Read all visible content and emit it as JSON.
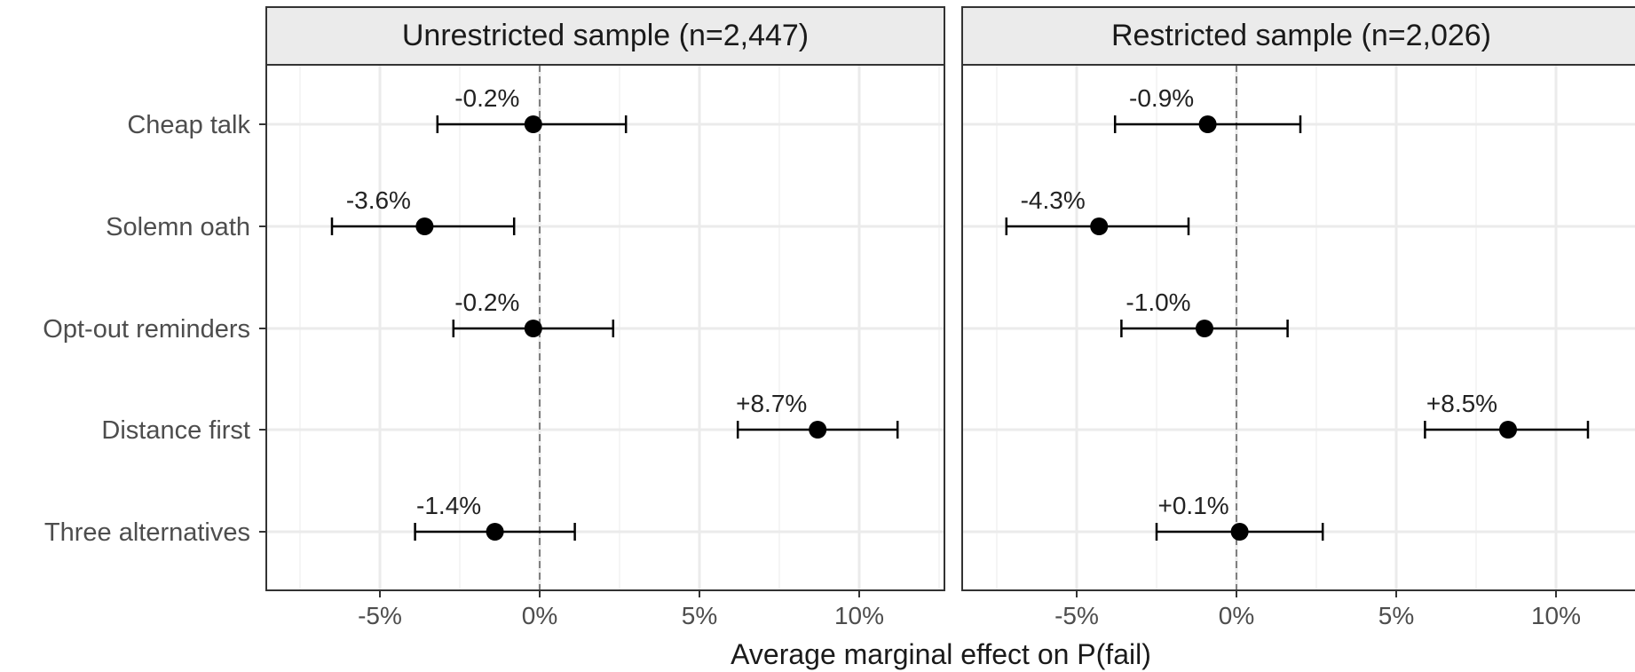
{
  "chart_data": [
    {
      "type": "scatter",
      "title": "Unrestricted sample (n=2,447)",
      "xlabel": "Average marginal effect on P(fail)",
      "x_ticks": [
        "-5%",
        "0%",
        "5%",
        "10%"
      ],
      "x_tick_values": [
        -5,
        0,
        5,
        10
      ],
      "xlim": [
        -8.5,
        12.5
      ],
      "reference_line_x": 0,
      "categories": [
        "Cheap talk",
        "Solemn oath",
        "Opt-out reminders",
        "Distance first",
        "Three alternatives"
      ],
      "estimates": [
        -0.2,
        -3.6,
        -0.2,
        8.7,
        -1.4
      ],
      "ci_low": [
        -3.2,
        -6.5,
        -2.7,
        6.2,
        -3.9
      ],
      "ci_high": [
        2.7,
        -0.8,
        2.3,
        11.2,
        1.1
      ],
      "labels": [
        "-0.2%",
        "-3.6%",
        "-0.2%",
        "+8.7%",
        "-1.4%"
      ]
    },
    {
      "type": "scatter",
      "title": "Restricted sample (n=2,026)",
      "xlabel": "Average marginal effect on P(fail)",
      "x_ticks": [
        "-5%",
        "0%",
        "5%",
        "10%"
      ],
      "x_tick_values": [
        -5,
        0,
        5,
        10
      ],
      "xlim": [
        -8.5,
        12.5
      ],
      "reference_line_x": 0,
      "categories": [
        "Cheap talk",
        "Solemn oath",
        "Opt-out reminders",
        "Distance first",
        "Three alternatives"
      ],
      "estimates": [
        -0.9,
        -4.3,
        -1.0,
        8.5,
        0.1
      ],
      "ci_low": [
        -3.8,
        -7.2,
        -3.6,
        5.9,
        -2.5
      ],
      "ci_high": [
        2.0,
        -1.5,
        1.6,
        11.0,
        2.7
      ],
      "labels": [
        "-0.9%",
        "-4.3%",
        "-1.0%",
        "+8.5%",
        "+0.1%"
      ]
    }
  ]
}
